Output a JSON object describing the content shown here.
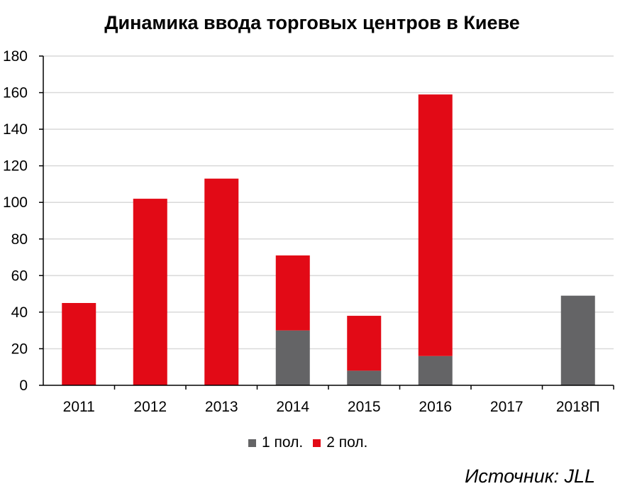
{
  "chart_data": {
    "type": "bar",
    "stacked": true,
    "title": "Динамика ввода торговых центров в Киеве",
    "categories": [
      "2011",
      "2012",
      "2013",
      "2014",
      "2015",
      "2016",
      "2017",
      "2018П"
    ],
    "series": [
      {
        "name": "1 пол.",
        "color": "#646466",
        "values": [
          0,
          0,
          0,
          30,
          8,
          16,
          0,
          49
        ]
      },
      {
        "name": "2 пол.",
        "color": "#e20a16",
        "values": [
          45,
          102,
          113,
          41,
          30,
          143,
          0,
          0
        ]
      }
    ],
    "ylim": [
      0,
      180
    ],
    "yticks": [
      0,
      20,
      40,
      60,
      80,
      100,
      120,
      140,
      160,
      180
    ],
    "grid": true,
    "legend_position": "bottom"
  },
  "source": "Источник: JLL"
}
